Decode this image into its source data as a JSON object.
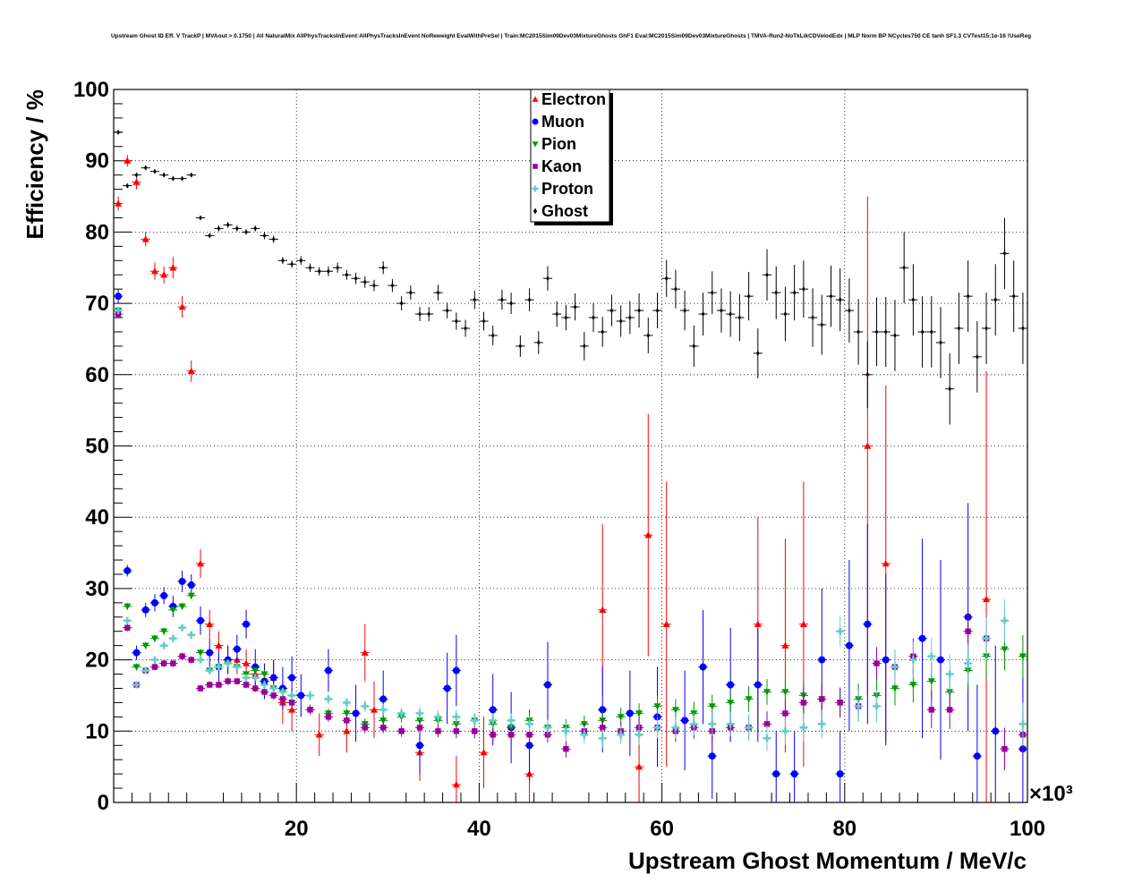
{
  "chart_data": {
    "type": "scatter",
    "title": "Upstream Ghost ID Eff. V TrackP | MVAout > 0.1750 | All NaturalMix AllPhysTracksInEvent:AllPhysTracksInEvent NoReweight EvalWithPreSel | Train:MC2015Sim09Dev03MixtureGhosts GhF1 Eval:MC2015Sim09Dev03MixtureGhosts | TMVA-Run2-NoTkLikCDVelodEdx | MLP Norm BP NCycles750 CE tanh SF1.3 CVTest15:1e-16 !UseReg",
    "xlabel": "Upstream Ghost Momentum / MeV/c",
    "ylabel": "Efficiency / %",
    "x_multiplier": "×10³",
    "xlim": [
      0,
      100
    ],
    "ylim": [
      0,
      100
    ],
    "xticks": [
      "20",
      "40",
      "60",
      "80",
      "100"
    ],
    "yticks": [
      "0",
      "10",
      "20",
      "30",
      "40",
      "50",
      "60",
      "70",
      "80",
      "90",
      "100"
    ],
    "grid": true,
    "legend_position": "top-center",
    "series": [
      {
        "name": "Electron",
        "color": "#ff0000",
        "marker": "triangle-up",
        "x": [
          0.5,
          1.5,
          2.5,
          3.5,
          4.5,
          5.5,
          6.5,
          7.5,
          8.5,
          9.5,
          10.5,
          11.5,
          12.5,
          13.5,
          14.5,
          15.5,
          16.5,
          17.5,
          18.5,
          19.5,
          22.5,
          25.5,
          27.5,
          28.5,
          33.5,
          37.5,
          40.5,
          45.5,
          53.5,
          57.5,
          58.5,
          60.5,
          70.5,
          73.5,
          75.5,
          82.5,
          84.5,
          95.5
        ],
        "y": [
          84,
          90,
          87,
          79,
          74.5,
          74,
          75,
          69.5,
          60.5,
          33.5,
          25,
          22,
          20,
          20,
          19.5,
          18,
          17,
          17.5,
          14,
          13,
          9.5,
          10,
          21,
          13,
          7,
          2.5,
          7,
          4,
          27,
          5,
          37.5,
          25,
          25,
          22,
          25,
          50,
          33.5,
          28.5
        ],
        "err": [
          1,
          0.8,
          1,
          1,
          1.2,
          1.2,
          1.5,
          1.5,
          1.5,
          2,
          2,
          2,
          2,
          2,
          2,
          2,
          2.5,
          2.5,
          3,
          3,
          3,
          3,
          4,
          4,
          4,
          4,
          5,
          5,
          12,
          8,
          17,
          20,
          15,
          15,
          20,
          35,
          25,
          32
        ]
      },
      {
        "name": "Muon",
        "color": "#0000ff",
        "marker": "circle",
        "x": [
          0.5,
          1.5,
          2.5,
          3.5,
          4.5,
          5.5,
          6.5,
          7.5,
          8.5,
          9.5,
          10.5,
          11.5,
          12.5,
          13.5,
          14.5,
          15.5,
          16.5,
          17.5,
          18.5,
          19.5,
          20.5,
          23.5,
          26.5,
          29.5,
          33.5,
          36.5,
          37.5,
          41.5,
          43.5,
          45.5,
          47.5,
          53.5,
          56.5,
          59.5,
          62.5,
          64.5,
          65.5,
          67.5,
          70.5,
          72.5,
          74.5,
          77.5,
          79.5,
          80.5,
          82.5,
          84.5,
          88.5,
          90.5,
          93.5,
          94.5,
          96.5,
          99.5
        ],
        "y": [
          71,
          32.5,
          21,
          27,
          28,
          29,
          27.5,
          31,
          30.5,
          25.5,
          21,
          19,
          20,
          21.5,
          25,
          19,
          17,
          17.5,
          16,
          17.5,
          15,
          18.5,
          12.5,
          14.5,
          8,
          16,
          18.5,
          13,
          10.5,
          8,
          16.5,
          13,
          12.5,
          12,
          11.5,
          19,
          6.5,
          16.5,
          16.5,
          4,
          4,
          20,
          4,
          22,
          25,
          20,
          23,
          20,
          26,
          6.5,
          10,
          7.5
        ],
        "err": [
          1,
          0.8,
          1,
          1,
          1.2,
          1.2,
          1.5,
          1.5,
          1.5,
          2,
          2,
          2,
          2,
          2,
          2,
          2.5,
          2.5,
          2.5,
          3,
          3,
          3,
          3,
          4,
          4,
          4,
          5,
          5,
          5,
          5,
          5,
          6,
          6,
          6,
          7,
          7,
          8,
          6,
          8,
          8,
          6,
          6,
          10,
          6,
          12,
          14,
          12,
          14,
          14,
          16,
          10,
          12,
          10
        ]
      },
      {
        "name": "Pion",
        "color": "#009900",
        "marker": "triangle-down",
        "x": [
          0.5,
          1.5,
          2.5,
          3.5,
          4.5,
          5.5,
          6.5,
          7.5,
          8.5,
          9.5,
          10.5,
          11.5,
          12.5,
          13.5,
          14.5,
          15.5,
          16.5,
          17.5,
          18.5,
          19.5,
          21.5,
          23.5,
          25.5,
          27.5,
          29.5,
          31.5,
          33.5,
          35.5,
          37.5,
          39.5,
          41.5,
          43.5,
          45.5,
          47.5,
          49.5,
          51.5,
          53.5,
          55.5,
          57.5,
          59.5,
          61.5,
          63.5,
          65.5,
          67.5,
          69.5,
          71.5,
          73.5,
          75.5,
          77.5,
          79.5,
          81.5,
          83.5,
          85.5,
          87.5,
          89.5,
          91.5,
          93.5,
          95.5,
          97.5,
          99.5
        ],
        "y": [
          69,
          27.5,
          19,
          22,
          23,
          24,
          27,
          27.5,
          29,
          21,
          18.5,
          19,
          19.5,
          19,
          18,
          18.5,
          18,
          16,
          15.5,
          14,
          13,
          12.5,
          12.5,
          11,
          11.5,
          12,
          11.5,
          11.5,
          11,
          11.5,
          11,
          10.5,
          11.5,
          10.5,
          10.5,
          11,
          11.5,
          12,
          12.5,
          13.5,
          13,
          12.5,
          13.5,
          14,
          14.5,
          15.5,
          15.5,
          15,
          14.5,
          14,
          14.5,
          15,
          16,
          16.5,
          17,
          15.5,
          18.5,
          20.5,
          21.5,
          20.5
        ],
        "err": [
          0.5,
          0.5,
          0.5,
          0.5,
          0.5,
          0.5,
          0.5,
          0.5,
          0.5,
          0.5,
          0.5,
          0.5,
          0.5,
          0.5,
          0.5,
          0.5,
          0.6,
          0.6,
          0.6,
          0.6,
          0.7,
          0.7,
          0.7,
          0.8,
          0.8,
          0.8,
          0.9,
          0.9,
          1,
          1,
          1,
          1,
          1.1,
          1.1,
          1.2,
          1.2,
          1.3,
          1.3,
          1.4,
          1.5,
          1.5,
          1.6,
          1.6,
          1.7,
          1.8,
          1.8,
          1.9,
          2,
          2,
          2.1,
          2.2,
          2.3,
          2.4,
          2.5,
          2.6,
          2.7,
          2.8,
          3,
          3,
          3
        ]
      },
      {
        "name": "Kaon",
        "color": "#990099",
        "marker": "square",
        "x": [
          0.5,
          1.5,
          2.5,
          3.5,
          4.5,
          5.5,
          6.5,
          7.5,
          8.5,
          9.5,
          10.5,
          11.5,
          12.5,
          13.5,
          14.5,
          15.5,
          16.5,
          17.5,
          18.5,
          19.5,
          21.5,
          23.5,
          25.5,
          27.5,
          29.5,
          31.5,
          33.5,
          35.5,
          37.5,
          39.5,
          41.5,
          43.5,
          45.5,
          47.5,
          49.5,
          51.5,
          53.5,
          55.5,
          57.5,
          59.5,
          61.5,
          63.5,
          65.5,
          67.5,
          69.5,
          71.5,
          73.5,
          75.5,
          77.5,
          79.5,
          81.5,
          83.5,
          85.5,
          87.5,
          89.5,
          91.5,
          93.5,
          95.5,
          97.5,
          99.5
        ],
        "y": [
          68.5,
          24.5,
          16.5,
          18.5,
          19,
          19.5,
          19.5,
          20.5,
          20,
          16,
          16.5,
          16.5,
          17,
          17,
          16.5,
          16,
          15.5,
          15,
          14.5,
          14,
          13,
          12,
          11.5,
          10.5,
          10.5,
          10,
          10.5,
          10,
          10,
          10,
          9.5,
          9.5,
          9.5,
          9.5,
          7.5,
          10,
          10.5,
          10,
          10.5,
          10.5,
          10,
          10.5,
          10,
          10.5,
          10.5,
          11,
          12.5,
          14,
          14.5,
          14,
          13.5,
          19.5,
          19,
          20.5,
          13,
          13,
          24,
          23,
          7.5,
          9.5
        ],
        "err": [
          0.5,
          0.5,
          0.5,
          0.5,
          0.5,
          0.5,
          0.5,
          0.5,
          0.5,
          0.5,
          0.5,
          0.5,
          0.5,
          0.5,
          0.5,
          0.5,
          0.6,
          0.6,
          0.6,
          0.6,
          0.7,
          0.7,
          0.7,
          0.8,
          0.8,
          0.8,
          0.9,
          0.9,
          1,
          1,
          1,
          1,
          1.1,
          1.1,
          1.2,
          1.2,
          1.3,
          1.3,
          1.4,
          1.5,
          1.5,
          1.6,
          1.6,
          1.7,
          1.8,
          1.8,
          1.9,
          2,
          2,
          2.1,
          2.2,
          2.3,
          2.4,
          2.5,
          2.6,
          2.7,
          2.8,
          3,
          3,
          3
        ]
      },
      {
        "name": "Proton",
        "color": "#66cccc",
        "marker": "plus",
        "x": [
          0.5,
          1.5,
          2.5,
          3.5,
          4.5,
          5.5,
          6.5,
          7.5,
          8.5,
          9.5,
          10.5,
          11.5,
          12.5,
          13.5,
          14.5,
          15.5,
          16.5,
          17.5,
          18.5,
          19.5,
          21.5,
          23.5,
          25.5,
          27.5,
          29.5,
          31.5,
          33.5,
          35.5,
          37.5,
          39.5,
          41.5,
          43.5,
          45.5,
          47.5,
          49.5,
          51.5,
          53.5,
          55.5,
          57.5,
          59.5,
          61.5,
          63.5,
          65.5,
          67.5,
          69.5,
          71.5,
          73.5,
          75.5,
          77.5,
          79.5,
          81.5,
          83.5,
          85.5,
          87.5,
          89.5,
          91.5,
          93.5,
          95.5,
          97.5,
          99.5
        ],
        "y": [
          69,
          25.5,
          16.5,
          18.5,
          20,
          22,
          23,
          24.5,
          23.5,
          20,
          18.5,
          19,
          19.5,
          19,
          17.5,
          17.5,
          16.5,
          16,
          15.5,
          15,
          15,
          14.5,
          14,
          13.5,
          13,
          12.5,
          12.5,
          12,
          12,
          11.5,
          11.5,
          11.5,
          11,
          10.5,
          10,
          9.5,
          9,
          9.5,
          9.5,
          10.5,
          10.5,
          11,
          11,
          11,
          10.5,
          9,
          10,
          10.5,
          11,
          24,
          13.5,
          13.5,
          19,
          20,
          20.5,
          18,
          19.5,
          23,
          25.5,
          11
        ],
        "err": [
          0.5,
          0.5,
          0.5,
          0.5,
          0.5,
          0.5,
          0.5,
          0.5,
          0.5,
          0.5,
          0.5,
          0.5,
          0.5,
          0.5,
          0.5,
          0.5,
          0.6,
          0.6,
          0.6,
          0.6,
          0.7,
          0.7,
          0.7,
          0.8,
          0.8,
          0.8,
          0.9,
          0.9,
          1,
          1,
          1,
          1,
          1.1,
          1.1,
          1.2,
          1.2,
          1.3,
          1.3,
          1.4,
          1.5,
          1.5,
          1.6,
          1.6,
          1.7,
          1.8,
          1.8,
          1.9,
          2,
          2,
          2.1,
          2.2,
          2.3,
          2.4,
          2.5,
          2.6,
          2.7,
          2.8,
          3,
          3,
          3
        ]
      },
      {
        "name": "Ghost",
        "color": "#000000",
        "marker": "diamond",
        "x": [
          0.5,
          1.5,
          2.5,
          3.5,
          4.5,
          5.5,
          6.5,
          7.5,
          8.5,
          9.5,
          10.5,
          11.5,
          12.5,
          13.5,
          14.5,
          15.5,
          16.5,
          17.5,
          18.5,
          19.5,
          20.5,
          21.5,
          22.5,
          23.5,
          24.5,
          25.5,
          26.5,
          27.5,
          28.5,
          29.5,
          30.5,
          31.5,
          32.5,
          33.5,
          34.5,
          35.5,
          36.5,
          37.5,
          38.5,
          39.5,
          40.5,
          41.5,
          42.5,
          43.5,
          44.5,
          45.5,
          46.5,
          47.5,
          48.5,
          49.5,
          50.5,
          51.5,
          52.5,
          53.5,
          54.5,
          55.5,
          56.5,
          57.5,
          58.5,
          59.5,
          60.5,
          61.5,
          62.5,
          63.5,
          64.5,
          65.5,
          66.5,
          67.5,
          68.5,
          69.5,
          70.5,
          71.5,
          72.5,
          73.5,
          74.5,
          75.5,
          76.5,
          77.5,
          78.5,
          79.5,
          80.5,
          81.5,
          82.5,
          83.5,
          84.5,
          85.5,
          86.5,
          87.5,
          88.5,
          89.5,
          90.5,
          91.5,
          92.5,
          93.5,
          94.5,
          95.5,
          96.5,
          97.5,
          98.5,
          99.5
        ],
        "y": [
          94,
          86.5,
          88,
          89,
          88.5,
          88,
          87.5,
          87.5,
          88,
          82,
          79.5,
          80.5,
          81,
          80.5,
          80,
          80.5,
          79.5,
          79,
          76,
          75.5,
          76,
          75,
          74.5,
          74.5,
          75,
          74,
          73.5,
          73,
          72.5,
          75,
          72.5,
          70,
          71.5,
          68.5,
          68.5,
          71.5,
          69,
          67.5,
          66.5,
          70.5,
          67.5,
          65.5,
          70.5,
          70,
          64,
          70.5,
          64.5,
          73.5,
          68.5,
          68,
          69.5,
          64,
          68,
          66,
          69,
          67.5,
          68,
          69,
          65.5,
          69,
          73.5,
          72,
          69,
          64,
          68.5,
          71.5,
          69,
          68.5,
          68,
          71,
          63,
          74,
          71.5,
          68.5,
          71.5,
          72,
          68,
          67,
          71,
          70.5,
          69,
          66,
          60,
          66,
          66,
          65.5,
          75,
          70.5,
          66,
          66,
          64.5,
          58,
          66.5,
          71,
          62.5,
          66.5,
          70.5,
          77,
          71,
          66.5
        ],
        "err": [
          0.3,
          0.3,
          0.3,
          0.3,
          0.3,
          0.3,
          0.3,
          0.3,
          0.3,
          0.3,
          0.3,
          0.4,
          0.4,
          0.4,
          0.4,
          0.4,
          0.5,
          0.5,
          0.5,
          0.5,
          0.6,
          0.6,
          0.6,
          0.7,
          0.7,
          0.7,
          0.8,
          0.8,
          0.8,
          0.9,
          0.9,
          1,
          1,
          1,
          1,
          1.1,
          1.1,
          1.2,
          1.2,
          1.3,
          1.3,
          1.4,
          1.4,
          1.5,
          1.5,
          1.6,
          1.6,
          1.7,
          1.8,
          1.8,
          1.9,
          2,
          2,
          2.1,
          2.2,
          2.2,
          2.3,
          2.4,
          2.5,
          2.5,
          2.6,
          2.7,
          2.8,
          2.9,
          3,
          3,
          3.1,
          3.2,
          3.3,
          3.4,
          3.5,
          3.6,
          3.7,
          3.8,
          3.9,
          4,
          4.1,
          4.2,
          4.3,
          4.4,
          4.5,
          4.6,
          4.7,
          4.8,
          4.9,
          5,
          5,
          5,
          5,
          5,
          5,
          5,
          5,
          5,
          5,
          5,
          5,
          5,
          5,
          5
        ]
      }
    ]
  }
}
